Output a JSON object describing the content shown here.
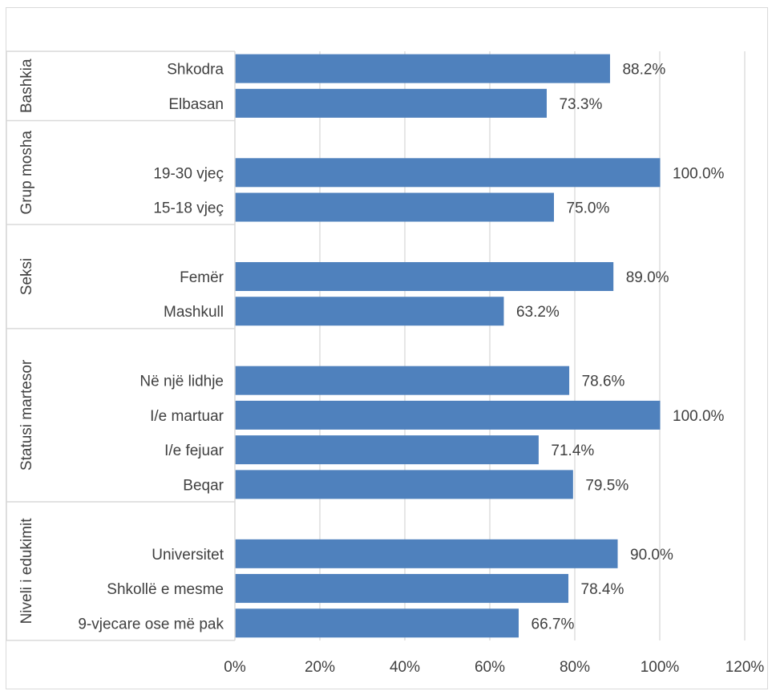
{
  "chart_data": {
    "type": "bar",
    "orientation": "horizontal",
    "xlim": [
      0,
      120
    ],
    "x_ticks": [
      "0%",
      "20%",
      "40%",
      "60%",
      "80%",
      "100%",
      "120%"
    ],
    "grid": true,
    "bar_color": "#4f81bd",
    "groups": [
      {
        "name": "Bashkia",
        "categories": [
          "Shkodra",
          "Elbasan"
        ],
        "values": [
          88.2,
          73.3
        ],
        "labels": [
          "88.2%",
          "73.3%"
        ]
      },
      {
        "name": "Grup mosha",
        "categories": [
          "",
          "19-30 vjeç",
          "15-18 vjeç"
        ],
        "values": [
          null,
          100.0,
          75.0
        ],
        "labels": [
          "",
          "100.0%",
          "75.0%"
        ]
      },
      {
        "name": "Seksi",
        "categories": [
          "",
          "Femër",
          "Mashkull"
        ],
        "values": [
          null,
          89.0,
          63.2
        ],
        "labels": [
          "",
          "89.0%",
          "63.2%"
        ]
      },
      {
        "name": "Statusi martesor",
        "categories": [
          "",
          "Në një lidhje",
          "I/e martuar",
          "I/e fejuar",
          "Beqar"
        ],
        "values": [
          null,
          78.6,
          100.0,
          71.4,
          79.5
        ],
        "labels": [
          "",
          "78.6%",
          "100.0%",
          "71.4%",
          "79.5%"
        ]
      },
      {
        "name": "Niveli i edukimit",
        "categories": [
          "",
          "Universitet",
          "Shkollë e mesme",
          "9-vjecare ose më pak"
        ],
        "values": [
          null,
          90.0,
          78.4,
          66.7
        ],
        "labels": [
          "",
          "90.0%",
          "78.4%",
          "66.7%"
        ]
      }
    ]
  }
}
